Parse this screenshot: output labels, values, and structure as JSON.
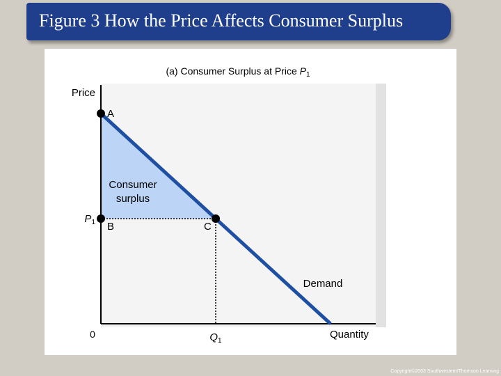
{
  "slide": {
    "title": "Figure 3 How the Price Affects Consumer Surplus",
    "copyright": "Copyright©2003 Southwestern/Thomson Learning"
  },
  "chart_data": {
    "type": "line",
    "title": "(a) Consumer Surplus at Price",
    "title_var": "P",
    "title_sub": "1",
    "ylabel": "Price",
    "xlabel": "Quantity",
    "origin_label": "0",
    "price_tick": {
      "var": "P",
      "sub": "1"
    },
    "quantity_tick": {
      "var": "Q",
      "sub": "1"
    },
    "demand": {
      "name": "Demand",
      "x": [
        0,
        1
      ],
      "y": [
        1,
        0
      ],
      "color": "#1f4fa3"
    },
    "equilibrium": {
      "x": 0.5,
      "y": 0.5
    },
    "region": {
      "label_lines": [
        "Consumer",
        "surplus"
      ],
      "color": "#bcd4f5"
    },
    "points": [
      {
        "label": "A",
        "x": 0,
        "y": 1
      },
      {
        "label": "B",
        "x": 0,
        "y": 0.5
      },
      {
        "label": "C",
        "x": 0.5,
        "y": 0.5
      }
    ],
    "xlim": [
      0,
      1
    ],
    "ylim": [
      0,
      1
    ],
    "grid": false
  }
}
